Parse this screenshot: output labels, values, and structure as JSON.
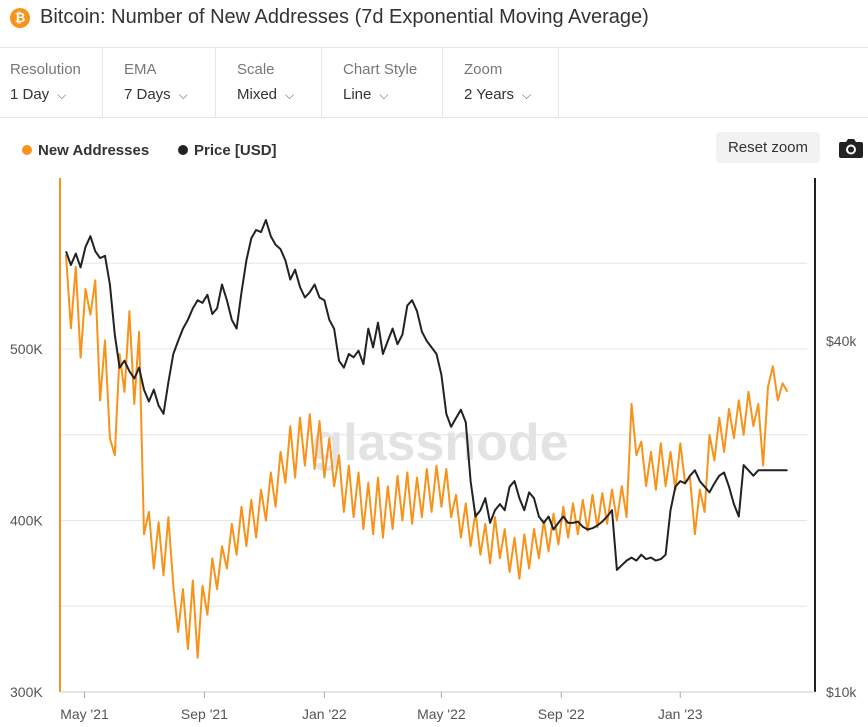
{
  "header": {
    "icon_glyph": "₿",
    "title": "Bitcoin: Number of New Addresses (7d Exponential Moving Average)"
  },
  "controls": [
    {
      "label": "Resolution",
      "value": "1 Day"
    },
    {
      "label": "EMA",
      "value": "7 Days"
    },
    {
      "label": "Scale",
      "value": "Mixed"
    },
    {
      "label": "Chart Style",
      "value": "Line"
    },
    {
      "label": "Zoom",
      "value": "2 Years"
    }
  ],
  "legend": {
    "new_addresses": "New Addresses",
    "price": "Price [USD]"
  },
  "reset_zoom_label": "Reset zoom",
  "icons": {
    "camera": "camera-icon",
    "chevron": "chevron-down-icon"
  },
  "colors": {
    "new_addresses": "#f7931a",
    "price": "#222222",
    "grid": "#e6e6e6",
    "watermark": "#e3e3e3"
  },
  "chart_data": {
    "type": "line",
    "watermark": "glassnode",
    "x_ticks": [
      "May '21",
      "Sep '21",
      "Jan '22",
      "May '22",
      "Sep '22",
      "Jan '23"
    ],
    "x_tick_days": [
      19,
      142,
      265,
      385,
      508,
      630
    ],
    "x_range_days": [
      0,
      760
    ],
    "y_left": {
      "ticks": [
        "500K",
        "400K",
        "300K"
      ],
      "tick_values": [
        500000,
        400000,
        300000
      ],
      "range": [
        300000,
        600000
      ]
    },
    "y_right": {
      "ticks": [
        "$40k",
        "$10k"
      ],
      "tick_values": [
        40000,
        10000
      ],
      "scale": "log",
      "range": [
        10000,
        80000
      ]
    },
    "series": [
      {
        "name": "New Addresses",
        "axis": "left",
        "days": [
          0,
          5,
          10,
          15,
          20,
          25,
          30,
          35,
          40,
          45,
          50,
          55,
          60,
          65,
          70,
          75,
          80,
          85,
          90,
          95,
          100,
          105,
          110,
          115,
          120,
          125,
          130,
          135,
          140,
          145,
          150,
          155,
          160,
          165,
          170,
          175,
          180,
          185,
          190,
          195,
          200,
          205,
          210,
          215,
          220,
          225,
          230,
          235,
          240,
          245,
          250,
          255,
          260,
          265,
          270,
          275,
          280,
          285,
          290,
          295,
          300,
          305,
          310,
          315,
          320,
          325,
          330,
          335,
          340,
          345,
          350,
          355,
          360,
          365,
          370,
          375,
          380,
          385,
          390,
          395,
          400,
          405,
          410,
          415,
          420,
          425,
          430,
          435,
          440,
          445,
          450,
          455,
          460,
          465,
          470,
          475,
          480,
          485,
          490,
          495,
          500,
          505,
          510,
          515,
          520,
          525,
          530,
          535,
          540,
          545,
          550,
          555,
          560,
          565,
          570,
          575,
          580,
          585,
          590,
          595,
          600,
          605,
          610,
          615,
          620,
          625,
          630,
          635,
          640,
          645,
          650,
          655,
          660,
          665,
          670,
          675,
          680,
          685,
          690,
          695,
          700,
          705,
          710,
          715,
          720,
          725,
          730,
          735,
          740
        ],
        "values": [
          555000,
          512000,
          548000,
          495000,
          535000,
          520000,
          540000,
          470000,
          505000,
          448000,
          438000,
          497000,
          475000,
          522000,
          468000,
          510000,
          392000,
          405000,
          372000,
          399000,
          368000,
          402000,
          362000,
          335000,
          360000,
          325000,
          365000,
          320000,
          362000,
          345000,
          378000,
          360000,
          385000,
          372000,
          398000,
          380000,
          408000,
          385000,
          412000,
          390000,
          418000,
          400000,
          428000,
          408000,
          440000,
          422000,
          455000,
          425000,
          460000,
          432000,
          462000,
          430000,
          458000,
          425000,
          448000,
          420000,
          438000,
          405000,
          432000,
          402000,
          428000,
          395000,
          422000,
          392000,
          425000,
          390000,
          420000,
          395000,
          426000,
          400000,
          428000,
          398000,
          425000,
          402000,
          430000,
          405000,
          432000,
          408000,
          430000,
          402000,
          415000,
          390000,
          410000,
          385000,
          405000,
          380000,
          398000,
          375000,
          402000,
          378000,
          395000,
          370000,
          390000,
          366000,
          392000,
          372000,
          395000,
          378000,
          400000,
          382000,
          404000,
          386000,
          408000,
          390000,
          410000,
          392000,
          412000,
          394000,
          415000,
          396000,
          416000,
          398000,
          418000,
          400000,
          420000,
          402000,
          468000,
          438000,
          446000,
          420000,
          440000,
          418000,
          445000,
          420000,
          440000,
          418000,
          445000,
          422000,
          425000,
          392000,
          418000,
          405000,
          450000,
          435000,
          460000,
          440000,
          465000,
          448000,
          470000,
          450000,
          475000,
          455000,
          468000,
          432000,
          478000,
          490000,
          470000,
          480000,
          475000
        ],
        "color": "#f7931a"
      },
      {
        "name": "Price [USD]",
        "axis": "right",
        "days": [
          0,
          5,
          10,
          15,
          20,
          25,
          30,
          35,
          40,
          45,
          50,
          55,
          60,
          65,
          70,
          75,
          80,
          85,
          90,
          95,
          100,
          105,
          110,
          115,
          120,
          125,
          130,
          135,
          140,
          145,
          150,
          155,
          160,
          165,
          170,
          175,
          180,
          185,
          190,
          195,
          200,
          205,
          210,
          215,
          220,
          225,
          230,
          235,
          240,
          245,
          250,
          255,
          260,
          265,
          270,
          275,
          280,
          285,
          290,
          295,
          300,
          305,
          310,
          315,
          320,
          325,
          330,
          335,
          340,
          345,
          350,
          355,
          360,
          365,
          370,
          375,
          380,
          385,
          390,
          395,
          400,
          405,
          410,
          415,
          420,
          425,
          430,
          435,
          440,
          445,
          450,
          455,
          460,
          465,
          470,
          475,
          480,
          485,
          490,
          495,
          500,
          505,
          510,
          515,
          520,
          525,
          530,
          535,
          540,
          545,
          550,
          555,
          560,
          565,
          570,
          575,
          580,
          585,
          590,
          595,
          600,
          605,
          610,
          615,
          620,
          625,
          630,
          635,
          640,
          645,
          650,
          655,
          660,
          665,
          670,
          675,
          680,
          685,
          690,
          695,
          700,
          705,
          710,
          715,
          720,
          725,
          730,
          735,
          740
        ],
        "values": [
          57000,
          54000,
          56500,
          53500,
          58000,
          60500,
          57000,
          55500,
          56000,
          50000,
          41000,
          36000,
          37000,
          35500,
          34500,
          36000,
          33000,
          31500,
          33000,
          31000,
          30000,
          34000,
          38000,
          40000,
          42000,
          43500,
          45500,
          47000,
          46500,
          48000,
          44500,
          45500,
          50000,
          47000,
          43500,
          42000,
          48500,
          55000,
          60000,
          62000,
          61500,
          64500,
          60500,
          58500,
          57500,
          55000,
          51000,
          53000,
          49500,
          47500,
          48500,
          50000,
          47500,
          47000,
          43500,
          42000,
          37000,
          36000,
          38000,
          37500,
          38500,
          36500,
          42000,
          39000,
          43000,
          38000,
          40000,
          42000,
          39500,
          41000,
          46000,
          47000,
          45000,
          41500,
          40000,
          39000,
          38000,
          35000,
          30000,
          28500,
          29500,
          30500,
          29000,
          23000,
          20000,
          20500,
          21500,
          19500,
          20500,
          21000,
          20500,
          22500,
          23000,
          21500,
          20500,
          22000,
          21500,
          20000,
          19500,
          20000,
          19000,
          19500,
          20000,
          19500,
          19500,
          19600,
          19200,
          19000,
          19100,
          19300,
          19600,
          20000,
          20500,
          16200,
          16500,
          16800,
          17000,
          16800,
          17200,
          16900,
          17000,
          16800,
          16900,
          17200,
          20500,
          22500,
          23000,
          22800,
          23500,
          24000,
          23000,
          22500,
          22000,
          22800,
          23500,
          23800,
          22500,
          21000,
          20000,
          24500,
          24000,
          23500,
          24000,
          24000,
          24000,
          24000,
          24000,
          24000,
          24000
        ],
        "color": "#222222"
      }
    ]
  }
}
